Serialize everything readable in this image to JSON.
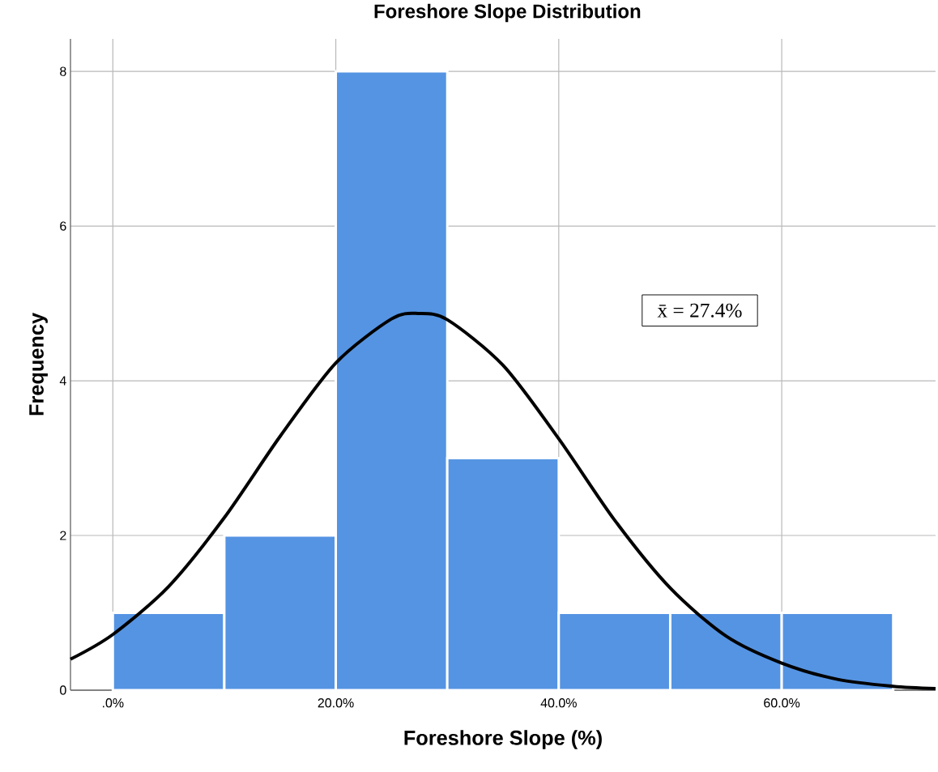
{
  "chart_data": {
    "type": "histogram",
    "title": "Foreshore Slope Distribution",
    "xlabel": "Foreshore Slope (%)",
    "ylabel": "Frequency",
    "bins": [
      0,
      10,
      20,
      30,
      40,
      50,
      60,
      70
    ],
    "series": [
      {
        "color": "#5594e3",
        "values": [
          1,
          2,
          8,
          3,
          1,
          1,
          1
        ]
      },
      {
        "type": "line",
        "color": "#000000",
        "marker": "none",
        "x": [
          -3.8,
          0,
          5,
          10,
          15,
          20,
          25,
          27.4,
          30,
          35,
          40,
          45,
          50,
          55,
          60,
          65,
          70,
          73.8
        ],
        "values": [
          0.4,
          0.72,
          1.34,
          2.23,
          3.28,
          4.23,
          4.8,
          4.87,
          4.79,
          4.2,
          3.25,
          2.2,
          1.32,
          0.7,
          0.35,
          0.14,
          0.05,
          0.02
        ]
      }
    ],
    "xlim": [
      -3.8,
      73.8
    ],
    "ylim": [
      0,
      8.42
    ],
    "xticks": [
      {
        "value": 0,
        "label": ".0%"
      },
      {
        "value": 20,
        "label": "20.0%"
      },
      {
        "value": 40,
        "label": "40.0%"
      },
      {
        "value": 60,
        "label": "60.0%"
      }
    ],
    "yticks": [
      0,
      2,
      4,
      6,
      8
    ],
    "grid": true,
    "annotations": [
      "x̄ = 27.4%"
    ]
  }
}
